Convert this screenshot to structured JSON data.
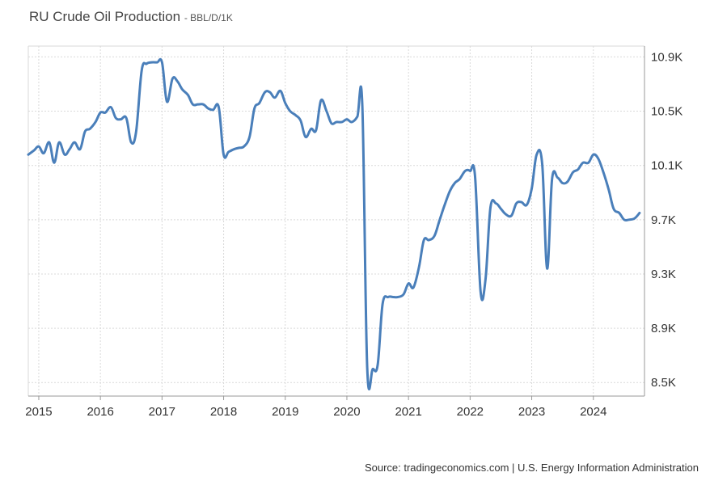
{
  "header": {
    "title": "RU Crude Oil Production",
    "unit": "BBL/D/1K"
  },
  "footer": {
    "source": "Source: tradingeconomics.com | U.S. Energy Information Administration"
  },
  "colors": {
    "line": "#4a7fba",
    "grid": "#d9d9d9",
    "axis": "#999999"
  },
  "chart_data": {
    "type": "line",
    "title": "RU Crude Oil Production",
    "ylabel": "BBL/D/1K",
    "grid": true,
    "legend": "none",
    "xlim": [
      2014.83,
      2024.83
    ],
    "ylim": [
      8.4,
      10.98
    ],
    "x_ticks": [
      2015,
      2016,
      2017,
      2018,
      2019,
      2020,
      2021,
      2022,
      2023,
      2024
    ],
    "x_tick_labels": [
      "2015",
      "2016",
      "2017",
      "2018",
      "2019",
      "2020",
      "2021",
      "2022",
      "2023",
      "2024"
    ],
    "y_ticks": [
      8.5,
      8.9,
      9.3,
      9.7,
      10.1,
      10.5,
      10.9
    ],
    "y_tick_labels": [
      "8.5K",
      "8.9K",
      "9.3K",
      "9.7K",
      "10.1K",
      "10.5K",
      "10.9K"
    ],
    "series": [
      {
        "values": [
          [
            2014.83,
            10.18
          ],
          [
            2014.92,
            10.21
          ],
          [
            2015.0,
            10.24
          ],
          [
            2015.08,
            10.19
          ],
          [
            2015.17,
            10.27
          ],
          [
            2015.25,
            10.12
          ],
          [
            2015.33,
            10.27
          ],
          [
            2015.42,
            10.18
          ],
          [
            2015.5,
            10.22
          ],
          [
            2015.58,
            10.27
          ],
          [
            2015.67,
            10.22
          ],
          [
            2015.75,
            10.35
          ],
          [
            2015.83,
            10.37
          ],
          [
            2015.92,
            10.42
          ],
          [
            2016.0,
            10.49
          ],
          [
            2016.08,
            10.49
          ],
          [
            2016.17,
            10.53
          ],
          [
            2016.25,
            10.45
          ],
          [
            2016.33,
            10.44
          ],
          [
            2016.42,
            10.45
          ],
          [
            2016.5,
            10.27
          ],
          [
            2016.58,
            10.35
          ],
          [
            2016.67,
            10.8
          ],
          [
            2016.75,
            10.85
          ],
          [
            2016.83,
            10.86
          ],
          [
            2016.92,
            10.86
          ],
          [
            2017.0,
            10.86
          ],
          [
            2017.08,
            10.57
          ],
          [
            2017.17,
            10.74
          ],
          [
            2017.25,
            10.72
          ],
          [
            2017.33,
            10.66
          ],
          [
            2017.42,
            10.62
          ],
          [
            2017.5,
            10.55
          ],
          [
            2017.58,
            10.55
          ],
          [
            2017.67,
            10.55
          ],
          [
            2017.75,
            10.52
          ],
          [
            2017.83,
            10.51
          ],
          [
            2017.92,
            10.53
          ],
          [
            2018.0,
            10.18
          ],
          [
            2018.08,
            10.2
          ],
          [
            2018.17,
            10.22
          ],
          [
            2018.25,
            10.23
          ],
          [
            2018.33,
            10.24
          ],
          [
            2018.42,
            10.31
          ],
          [
            2018.5,
            10.52
          ],
          [
            2018.58,
            10.56
          ],
          [
            2018.67,
            10.64
          ],
          [
            2018.75,
            10.64
          ],
          [
            2018.83,
            10.6
          ],
          [
            2018.92,
            10.65
          ],
          [
            2019.0,
            10.56
          ],
          [
            2019.08,
            10.5
          ],
          [
            2019.17,
            10.47
          ],
          [
            2019.25,
            10.43
          ],
          [
            2019.33,
            10.31
          ],
          [
            2019.42,
            10.37
          ],
          [
            2019.5,
            10.36
          ],
          [
            2019.58,
            10.58
          ],
          [
            2019.67,
            10.5
          ],
          [
            2019.75,
            10.41
          ],
          [
            2019.83,
            10.42
          ],
          [
            2019.92,
            10.42
          ],
          [
            2020.0,
            10.44
          ],
          [
            2020.08,
            10.42
          ],
          [
            2020.17,
            10.46
          ],
          [
            2020.25,
            10.55
          ],
          [
            2020.33,
            8.61
          ],
          [
            2020.42,
            8.6
          ],
          [
            2020.5,
            8.63
          ],
          [
            2020.58,
            9.08
          ],
          [
            2020.67,
            9.13
          ],
          [
            2020.75,
            9.13
          ],
          [
            2020.83,
            9.13
          ],
          [
            2020.92,
            9.15
          ],
          [
            2021.0,
            9.23
          ],
          [
            2021.08,
            9.2
          ],
          [
            2021.17,
            9.35
          ],
          [
            2021.25,
            9.55
          ],
          [
            2021.33,
            9.55
          ],
          [
            2021.42,
            9.58
          ],
          [
            2021.5,
            9.69
          ],
          [
            2021.58,
            9.8
          ],
          [
            2021.67,
            9.91
          ],
          [
            2021.75,
            9.97
          ],
          [
            2021.83,
            10.0
          ],
          [
            2021.92,
            10.06
          ],
          [
            2022.0,
            10.06
          ],
          [
            2022.08,
            10.02
          ],
          [
            2022.17,
            9.17
          ],
          [
            2022.25,
            9.26
          ],
          [
            2022.33,
            9.79
          ],
          [
            2022.42,
            9.82
          ],
          [
            2022.5,
            9.78
          ],
          [
            2022.58,
            9.74
          ],
          [
            2022.67,
            9.73
          ],
          [
            2022.75,
            9.82
          ],
          [
            2022.83,
            9.83
          ],
          [
            2022.92,
            9.81
          ],
          [
            2023.0,
            9.93
          ],
          [
            2023.08,
            10.18
          ],
          [
            2023.17,
            10.11
          ],
          [
            2023.25,
            9.34
          ],
          [
            2023.33,
            10.0
          ],
          [
            2023.42,
            10.01
          ],
          [
            2023.5,
            9.97
          ],
          [
            2023.58,
            9.98
          ],
          [
            2023.67,
            10.05
          ],
          [
            2023.75,
            10.07
          ],
          [
            2023.83,
            10.12
          ],
          [
            2023.92,
            10.12
          ],
          [
            2024.0,
            10.18
          ],
          [
            2024.08,
            10.15
          ],
          [
            2024.17,
            10.04
          ],
          [
            2024.25,
            9.92
          ],
          [
            2024.33,
            9.78
          ],
          [
            2024.42,
            9.75
          ],
          [
            2024.5,
            9.7
          ],
          [
            2024.58,
            9.7
          ],
          [
            2024.67,
            9.71
          ],
          [
            2024.75,
            9.75
          ]
        ]
      }
    ]
  }
}
